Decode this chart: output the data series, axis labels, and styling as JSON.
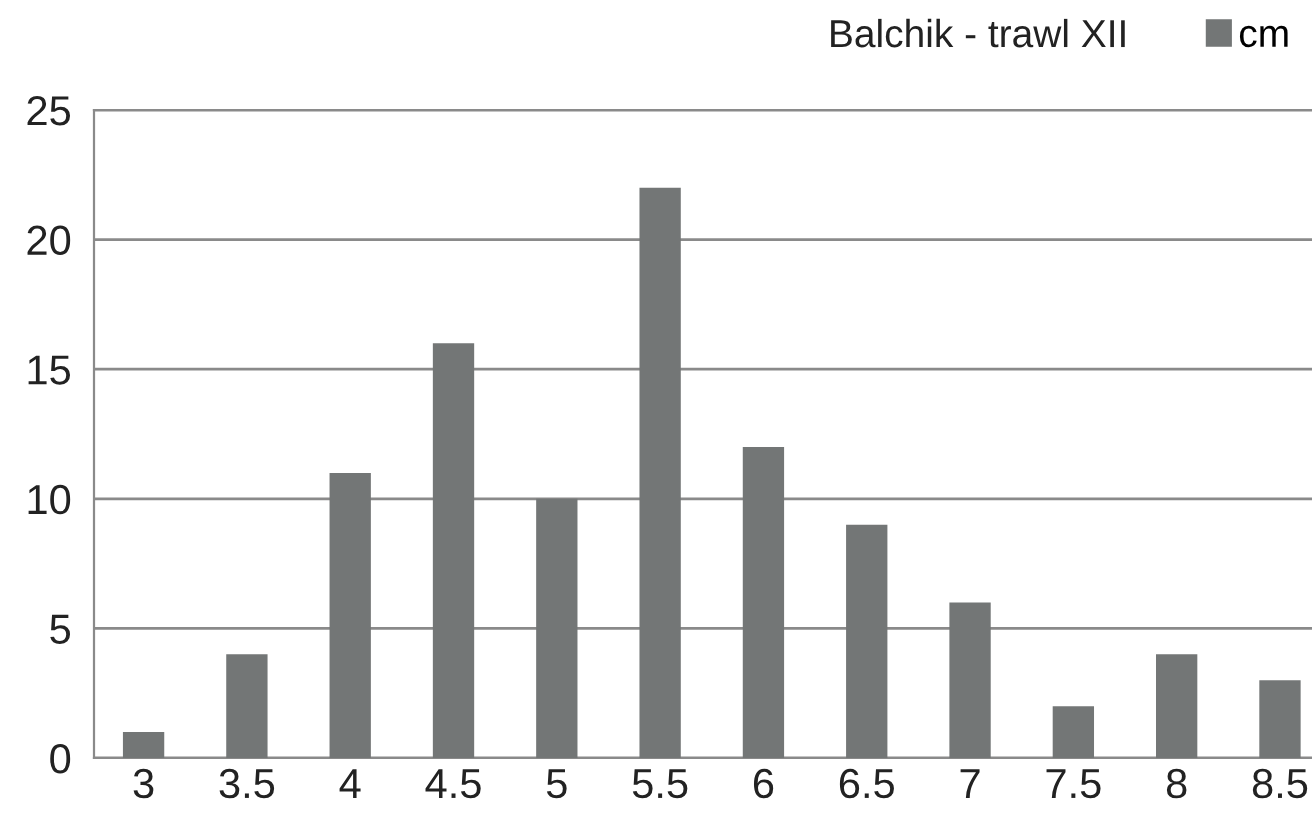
{
  "chart_data": {
    "type": "bar",
    "title": "Balchik - trawl XII",
    "categories": [
      "3",
      "3.5",
      "4",
      "4.5",
      "5",
      "5.5",
      "6",
      "6.5",
      "7",
      "7.5",
      "8",
      "8.5"
    ],
    "series": [
      {
        "name": "cm",
        "color": "#737676",
        "values": [
          1,
          4,
          11,
          16,
          10,
          22,
          12,
          9,
          6,
          2,
          4,
          3
        ]
      }
    ],
    "ylim": [
      0,
      25
    ],
    "yticks": [
      0,
      5,
      10,
      15,
      20,
      25
    ],
    "grid": "y",
    "legend": "top right"
  }
}
